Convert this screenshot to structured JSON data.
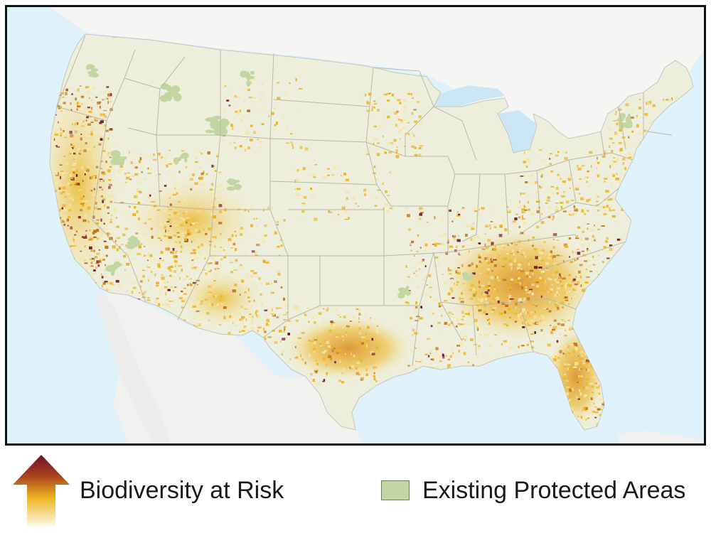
{
  "map": {
    "region": "Contiguous United States",
    "colors": {
      "ocean": "#dff1fb",
      "neighbor_land": "#f4f4f2",
      "lakes": "#cbe7f5",
      "land_base": "#eeeedc",
      "state_borders": "#b5b5a6",
      "risk_low": "#f3e7a6",
      "risk_mid": "#edb41e",
      "risk_high": "#c4701a",
      "risk_highest": "#6e0f2a",
      "protected": "#c3d6a1"
    }
  },
  "legend": {
    "risk": {
      "label": "Biodiversity at Risk",
      "icon": "arrow-up-gradient-icon"
    },
    "protected": {
      "label": "Existing Protected Areas",
      "icon": "green-square-swatch"
    }
  }
}
